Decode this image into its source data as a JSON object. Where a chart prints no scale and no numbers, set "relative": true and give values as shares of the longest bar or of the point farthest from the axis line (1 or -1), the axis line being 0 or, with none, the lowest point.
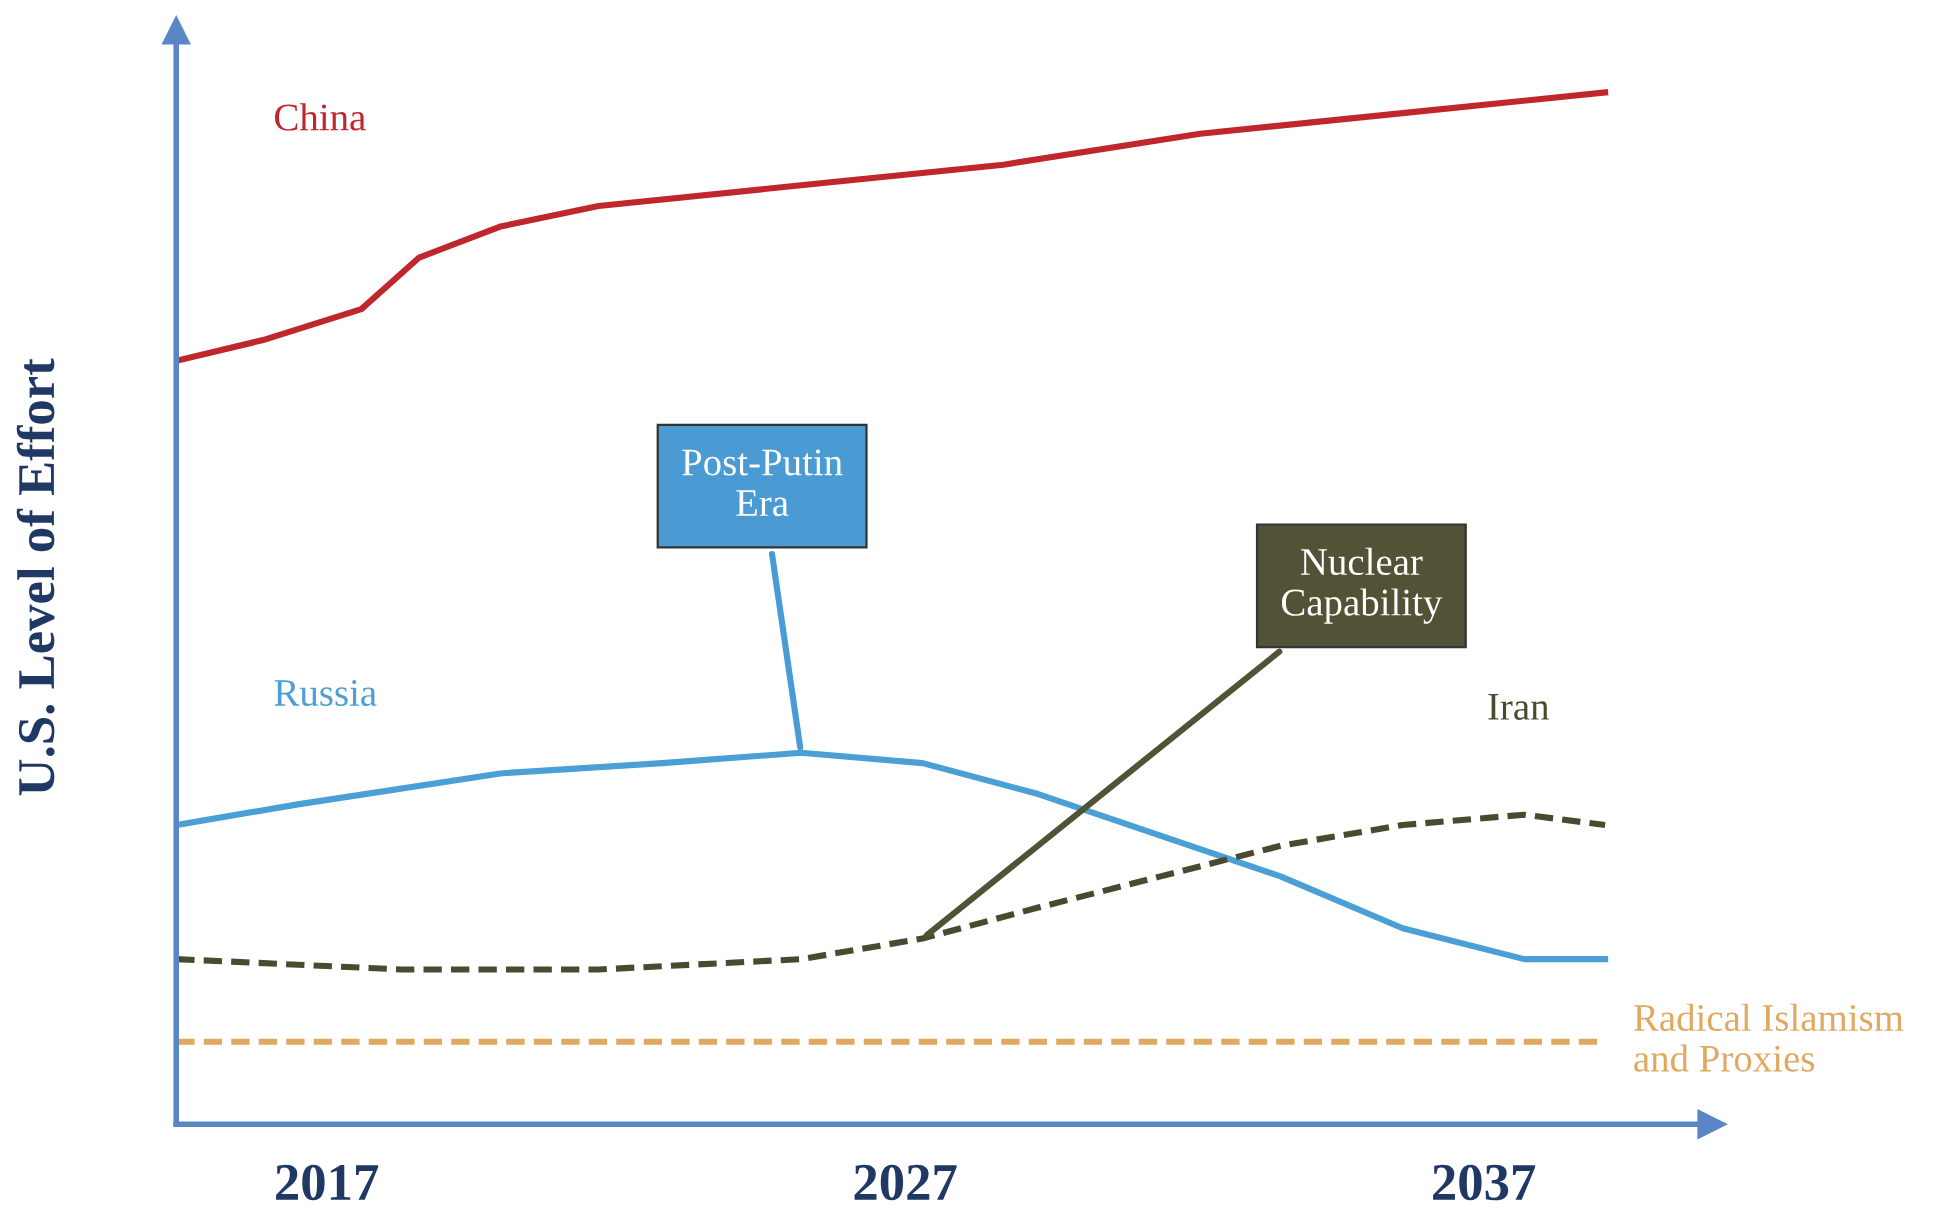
{
  "chart_data": {
    "type": "line",
    "relative": true,
    "ylabel": "U.S. Level of Effort",
    "xlim": [
      2014.4,
      2040.8
    ],
    "xticks": [
      2017,
      2027,
      2037
    ],
    "grid": false,
    "legend": false,
    "marker": "none",
    "series": [
      {
        "name": "China",
        "color": "#c0272d",
        "line_style": "solid",
        "x": [
          2014.4,
          2015.9,
          2017.6,
          2018.6,
          2020.0,
          2021.7,
          2025.2,
          2028.7,
          2032.1,
          2035.6,
          2039.1
        ],
        "values": [
          0.74,
          0.76,
          0.79,
          0.84,
          0.87,
          0.89,
          0.91,
          0.93,
          0.96,
          0.98,
          1
        ]
      },
      {
        "name": "Russia",
        "color": "#4a9fd4",
        "line_style": "solid",
        "x": [
          2014.4,
          2016.5,
          2020.0,
          2022.8,
          2025.2,
          2027.3,
          2029.3,
          2031.4,
          2033.5,
          2035.6,
          2037.7,
          2039.1
        ],
        "values": [
          0.29,
          0.31,
          0.34,
          0.35,
          0.36,
          0.35,
          0.32,
          0.28,
          0.24,
          0.19,
          0.16,
          0.16
        ]
      },
      {
        "name": "Iran",
        "color": "#4a4a30",
        "line_style": "dashed",
        "x": [
          2014.4,
          2018.3,
          2021.7,
          2025.2,
          2027.3,
          2029.3,
          2031.4,
          2033.5,
          2035.6,
          2037.7,
          2039.1
        ],
        "values": [
          0.16,
          0.15,
          0.15,
          0.16,
          0.18,
          0.21,
          0.24,
          0.27,
          0.29,
          0.3,
          0.29
        ]
      },
      {
        "name": "Radical Islamism\nand Proxies",
        "color": "#e0a860",
        "line_style": "dashed",
        "x": [
          2014.4,
          2039.1
        ],
        "values": [
          0.08,
          0.08
        ]
      }
    ],
    "annotations": [
      {
        "text": "Post-Putin\nEra",
        "x": 2025.2,
        "y": 0.36
      },
      {
        "text": "Nuclear\nCapability",
        "x": 2027.3,
        "y": 0.18
      }
    ]
  }
}
